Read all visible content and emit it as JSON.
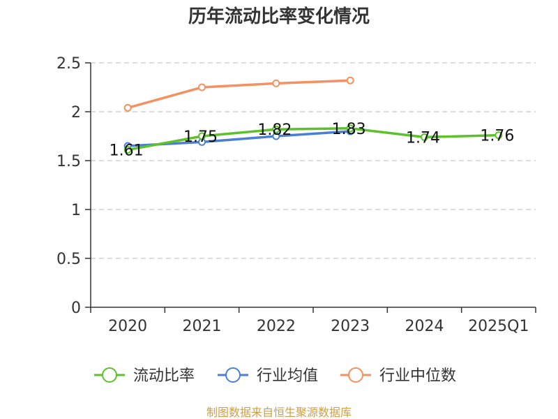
{
  "chart_data": {
    "type": "line",
    "title": "历年流动比率变化情况",
    "categories": [
      "2020",
      "2021",
      "2022",
      "2023",
      "2024",
      "2025Q1"
    ],
    "ylim": [
      0,
      2.5
    ],
    "yticks": [
      "0",
      "0.5",
      "1",
      "1.5",
      "2",
      "2.5"
    ],
    "grid": true,
    "legend_position": "bottom",
    "series": [
      {
        "name": "流动比率",
        "color": "#5cc12a",
        "values": [
          1.61,
          1.75,
          1.82,
          1.83,
          1.74,
          1.76
        ],
        "labels": [
          "1.61",
          "1.75",
          "1.82",
          "1.83",
          "1.74",
          "1.76"
        ]
      },
      {
        "name": "行业均值",
        "color": "#4a7fd8",
        "values": [
          1.65,
          1.69,
          1.75,
          1.8,
          null,
          null
        ]
      },
      {
        "name": "行业中位数",
        "color": "#f39161",
        "values": [
          2.04,
          2.25,
          2.29,
          2.32,
          null,
          null
        ]
      }
    ],
    "source": "制图数据来自恒生聚源数据库"
  }
}
